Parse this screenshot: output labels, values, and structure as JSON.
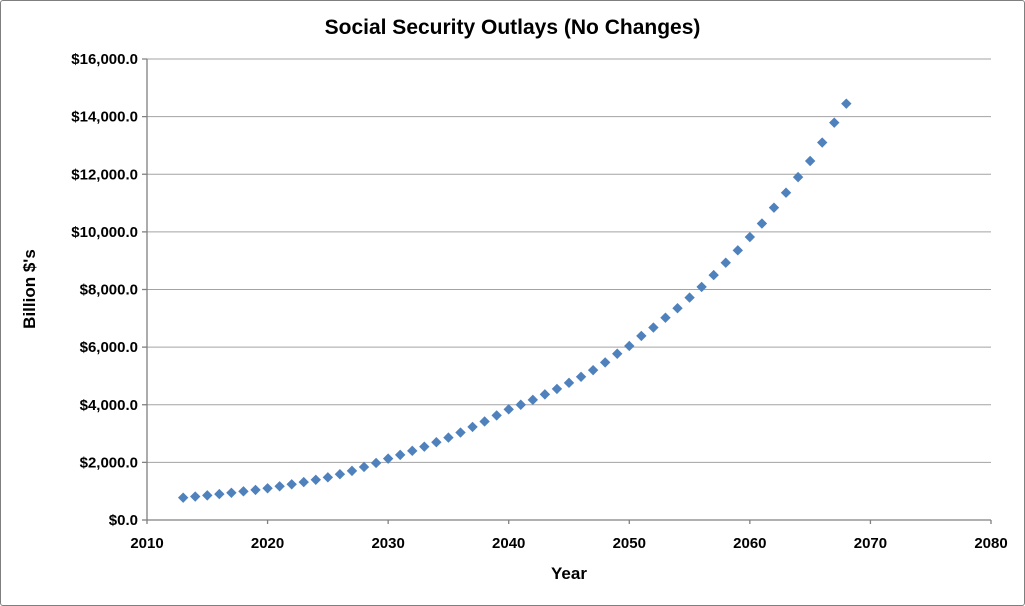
{
  "chart_data": {
    "type": "scatter",
    "title": "Social Security Outlays (No Changes)",
    "xlabel": "Year",
    "ylabel": "Billion $'s",
    "xlim": [
      2010,
      2080
    ],
    "ylim": [
      0,
      16000
    ],
    "x_ticks": [
      2010,
      2020,
      2030,
      2040,
      2050,
      2060,
      2070,
      2080
    ],
    "y_ticks": [
      0,
      2000,
      4000,
      6000,
      8000,
      10000,
      12000,
      14000,
      16000
    ],
    "y_tick_labels": [
      "$0.0",
      "$2,000.0",
      "$4,000.0",
      "$6,000.0",
      "$8,000.0",
      "$10,000.0",
      "$12,000.0",
      "$14,000.0",
      "$16,000.0"
    ],
    "grid": true,
    "legend": false,
    "marker": "diamond",
    "marker_color": "#4F81BD",
    "gridline_color": "#a3a3a3",
    "axis_color": "#808080",
    "x": [
      2013,
      2014,
      2015,
      2016,
      2017,
      2018,
      2019,
      2020,
      2021,
      2022,
      2023,
      2024,
      2025,
      2026,
      2027,
      2028,
      2029,
      2030,
      2031,
      2032,
      2033,
      2034,
      2035,
      2036,
      2037,
      2038,
      2039,
      2040,
      2041,
      2042,
      2043,
      2044,
      2045,
      2046,
      2047,
      2048,
      2049,
      2050,
      2051,
      2052,
      2053,
      2054,
      2055,
      2056,
      2057,
      2058,
      2059,
      2060,
      2061,
      2062,
      2063,
      2064,
      2065,
      2066,
      2067,
      2068
    ],
    "y": [
      775,
      815,
      855,
      900,
      945,
      995,
      1045,
      1100,
      1170,
      1240,
      1315,
      1395,
      1480,
      1590,
      1705,
      1840,
      1980,
      2130,
      2260,
      2400,
      2545,
      2700,
      2860,
      3035,
      3230,
      3420,
      3630,
      3840,
      4000,
      4170,
      4360,
      4550,
      4760,
      4970,
      5200,
      5470,
      5770,
      6040,
      6390,
      6680,
      7020,
      7350,
      7720,
      8090,
      8500,
      8930,
      9360,
      9820,
      10290,
      10840,
      11360,
      11900,
      12460,
      13100,
      13790,
      14450
    ]
  }
}
